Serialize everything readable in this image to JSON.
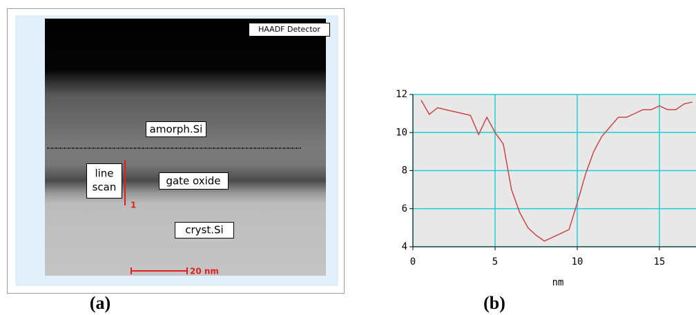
{
  "panel_a": {
    "caption": "(a)",
    "detector_label": "HAADF Detector",
    "region_labels": [
      "amorph.Si",
      "gate oxide",
      "cryst.Si"
    ],
    "line_scan_label": [
      "line",
      "scan"
    ],
    "line_scan_marker": "1",
    "scale_bar": "20 nm"
  },
  "chart_data": {
    "type": "line",
    "caption": "(b)",
    "x_label": "nm",
    "x": [
      0.5,
      1,
      1.5,
      2,
      2.5,
      3,
      3.5,
      4,
      4.5,
      5,
      5.5,
      6,
      6.5,
      7,
      7.5,
      8,
      8.5,
      9,
      9.5,
      10,
      10.5,
      11,
      11.5,
      12,
      12.5,
      13,
      13.5,
      14,
      14.5,
      15,
      15.5,
      16,
      16.5,
      17
    ],
    "series": [
      {
        "color": "#cc4444",
        "values": [
          11.7,
          10.95,
          11.3,
          11.2,
          11.1,
          11.0,
          10.9,
          9.9,
          10.8,
          10.0,
          9.4,
          7.0,
          5.8,
          5.0,
          4.6,
          4.3,
          4.5,
          4.7,
          4.9,
          6.3,
          7.8,
          9.0,
          9.8,
          10.3,
          10.8,
          10.8,
          11.0,
          11.2,
          11.2,
          11.4,
          11.2,
          11.2,
          11.5,
          11.6
        ]
      }
    ],
    "xlim": [
      0,
      17.2
    ],
    "ylim": [
      4,
      12
    ],
    "xticks": [
      0,
      5,
      10,
      15
    ],
    "yticks": [
      4,
      6,
      8,
      10,
      12
    ],
    "grid": true
  }
}
